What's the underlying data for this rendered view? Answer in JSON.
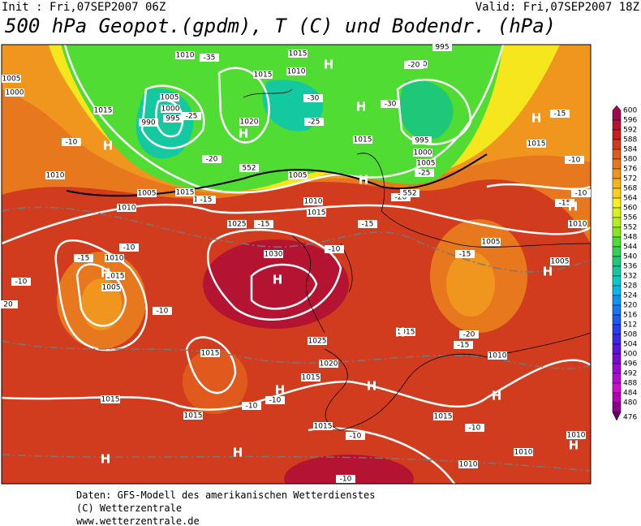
{
  "header": {
    "init": "Init : Fri,07SEP2007 06Z",
    "valid": "Valid: Fri,07SEP2007 18Z",
    "title": "500 hPa Geopot.(gpdm), T (C) und Bodendr. (hPa)"
  },
  "colorbar": {
    "levels": [
      600,
      596,
      592,
      588,
      584,
      580,
      576,
      572,
      568,
      564,
      560,
      556,
      552,
      548,
      544,
      540,
      536,
      532,
      528,
      524,
      520,
      516,
      512,
      508,
      504,
      500,
      496,
      492,
      488,
      484,
      480,
      476
    ],
    "colors": [
      "#9b0a50",
      "#b41432",
      "#c81e1e",
      "#d23c1e",
      "#e05a1e",
      "#e8781e",
      "#f0961e",
      "#f5b41e",
      "#fad21e",
      "#f5f01e",
      "#dcf01e",
      "#b4f01e",
      "#8ce61e",
      "#50dc32",
      "#32d250",
      "#1ec878",
      "#14c8a0",
      "#0ac8c8",
      "#0ab4e6",
      "#0a96f0",
      "#1478f0",
      "#1e5af0",
      "#283cf0",
      "#3c28e6",
      "#5a14dc",
      "#780ad2",
      "#960ad2",
      "#b40ad2",
      "#d20ad2",
      "#b400b4",
      "#8c008c",
      "#640064"
    ]
  },
  "map": {
    "pressure_labels": [
      1010,
      1015,
      1005,
      1000,
      1015,
      1005,
      1000,
      995,
      990,
      1015,
      1010,
      1020,
      1015,
      1005,
      995,
      1000,
      995,
      1000,
      1005,
      1015,
      1010,
      1005,
      1015,
      1020,
      1010,
      1010,
      1015,
      1025,
      1030,
      1010,
      1015,
      1005,
      1005,
      1005,
      1010,
      1025,
      1020,
      1015,
      1015,
      1015,
      1010,
      1015,
      1015,
      1015,
      1015,
      1010,
      1010,
      1010
    ],
    "temperature_labels": [
      -35,
      -30,
      -25,
      -30,
      -25,
      -20,
      -25,
      -20,
      -15,
      -10,
      -10,
      -10,
      -15,
      -15,
      -15,
      -20,
      -15,
      -10,
      -15,
      -10,
      -10,
      -10,
      -20,
      -15,
      -10,
      -10,
      -10,
      -10,
      -10,
      -15,
      20
    ],
    "height_labels": [
      552,
      552
    ],
    "highs": [
      "H",
      "H",
      "H",
      "H",
      "H",
      "H",
      "H",
      "H",
      "H",
      "H",
      "H",
      "H",
      "H",
      "H",
      "H",
      "H",
      "H"
    ]
  },
  "footer": {
    "source": "Daten: GFS-Modell des amerikanischen Wetterdienstes",
    "copyright": "(C) Wetterzentrale",
    "url": "www.wetterzentrale.de"
  }
}
